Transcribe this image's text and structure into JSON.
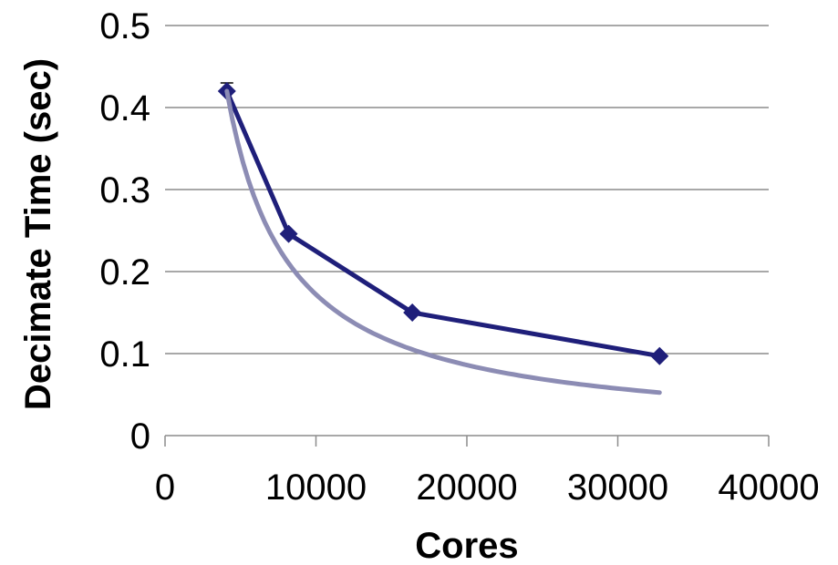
{
  "chart_data": {
    "type": "line",
    "xlabel": "Cores",
    "ylabel": "Decimate Time (sec)",
    "xlim": [
      0,
      40000
    ],
    "ylim": [
      0,
      0.5
    ],
    "x_ticks": [
      "0",
      "10000",
      "20000",
      "30000",
      "40000"
    ],
    "y_ticks": [
      "0",
      "0.1",
      "0.2",
      "0.3",
      "0.4",
      "0.5"
    ],
    "grid": "horizontal",
    "legend": "none",
    "series": [
      {
        "role": "measured",
        "color": "#1f1f7a",
        "marker": "diamond",
        "x": [
          4096,
          8192,
          16384,
          32768
        ],
        "values": [
          0.42,
          0.246,
          0.15,
          0.097
        ],
        "error_bar": [
          0.01,
          0,
          0,
          0
        ]
      },
      {
        "role": "ideal-scaling",
        "color": "#8c8cb4",
        "marker": "none",
        "curve": "reciprocal",
        "x_range": [
          4096,
          32768
        ],
        "anchor": [
          4096,
          0.42
        ]
      }
    ]
  }
}
